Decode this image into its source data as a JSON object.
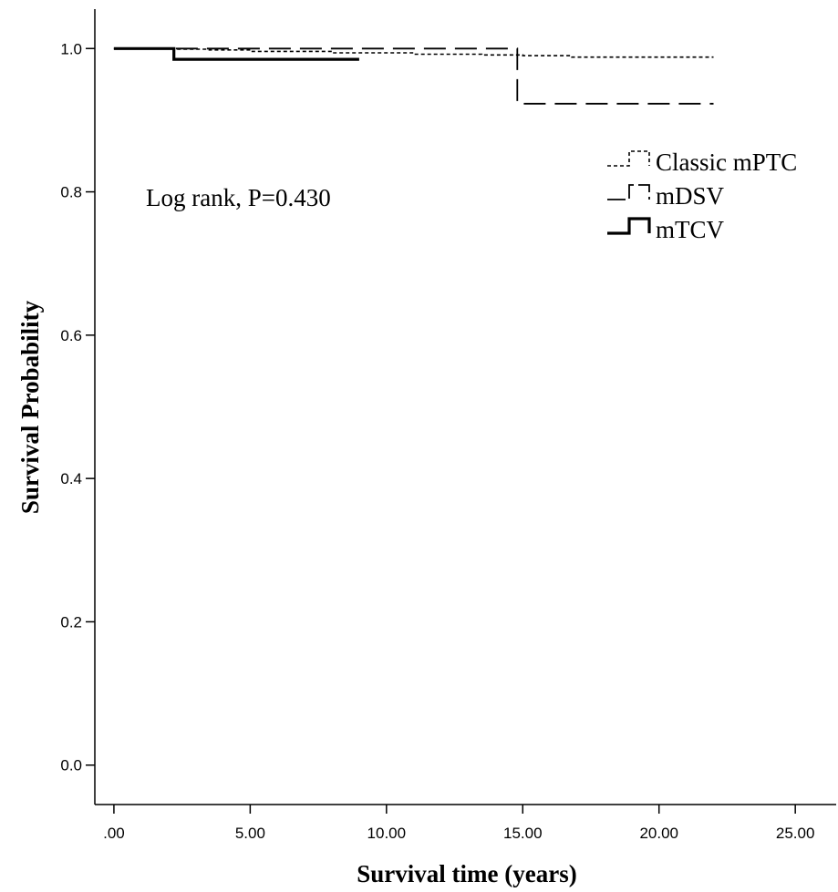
{
  "chart_data": {
    "type": "line",
    "subtype": "kaplan-meier step",
    "xlabel": "Survival time (years)",
    "ylabel": "Survival Probability",
    "xlim": [
      -0.7,
      26.5
    ],
    "ylim": [
      -0.055,
      1.055
    ],
    "xticks": [
      0,
      5,
      10,
      15,
      20,
      25
    ],
    "xtick_labels": [
      ".00",
      "5.00",
      "10.00",
      "15.00",
      "20.00",
      "25.00"
    ],
    "yticks": [
      0.0,
      0.2,
      0.4,
      0.6,
      0.8,
      1.0
    ],
    "ytick_labels": [
      "0.0",
      "0.2",
      "0.4",
      "0.6",
      "0.8",
      "1.0"
    ],
    "grid": false,
    "legend_position": "right",
    "annotation": "Log rank, P=0.430",
    "series": [
      {
        "name": "Classic mPTC",
        "style": "short-dash",
        "x": [
          0,
          2.3,
          3.5,
          5.0,
          8.0,
          11.0,
          13.5,
          15.0,
          16.8,
          22.0
        ],
        "y": [
          1.0,
          0.999,
          0.998,
          0.996,
          0.994,
          0.992,
          0.991,
          0.99,
          0.988,
          0.988
        ]
      },
      {
        "name": "mDSV",
        "style": "long-dash",
        "x": [
          0,
          14.8,
          22.0
        ],
        "y": [
          1.0,
          0.923,
          0.923
        ]
      },
      {
        "name": "mTCV",
        "style": "solid-thick",
        "x": [
          0,
          2.2,
          9.0
        ],
        "y": [
          1.0,
          0.985,
          0.985
        ]
      }
    ]
  }
}
